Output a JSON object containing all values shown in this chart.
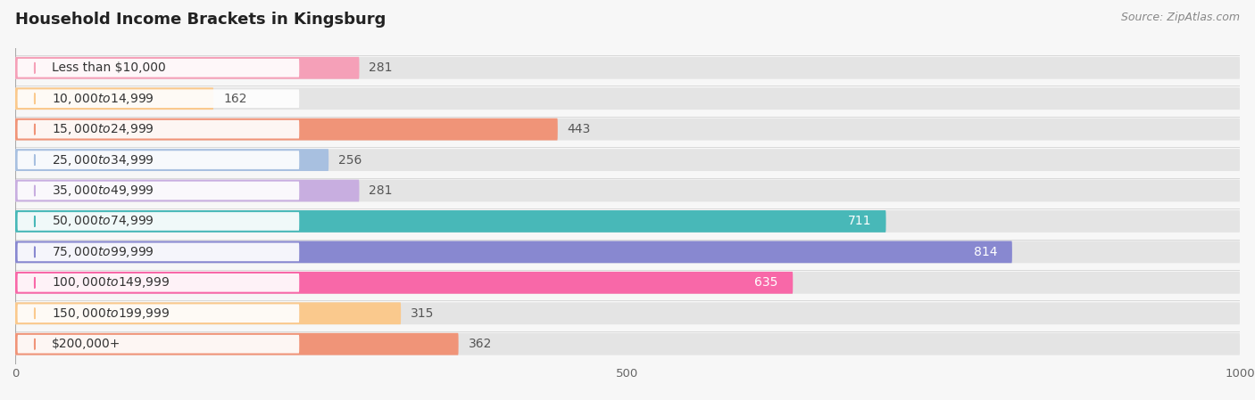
{
  "title": "Household Income Brackets in Kingsburg",
  "source": "Source: ZipAtlas.com",
  "categories": [
    "Less than $10,000",
    "$10,000 to $14,999",
    "$15,000 to $24,999",
    "$25,000 to $34,999",
    "$35,000 to $49,999",
    "$50,000 to $74,999",
    "$75,000 to $99,999",
    "$100,000 to $149,999",
    "$150,000 to $199,999",
    "$200,000+"
  ],
  "values": [
    281,
    162,
    443,
    256,
    281,
    711,
    814,
    635,
    315,
    362
  ],
  "bar_colors": [
    "#f5a0b8",
    "#fac98d",
    "#f09478",
    "#a8c0e0",
    "#c8aee0",
    "#48b8b8",
    "#8888d0",
    "#f868a8",
    "#fac98d",
    "#f09478"
  ],
  "label_colors_on_bar": [
    "#666666",
    "#666666",
    "#666666",
    "#666666",
    "#666666",
    "#ffffff",
    "#ffffff",
    "#ffffff",
    "#666666",
    "#666666"
  ],
  "bg_color": "#f7f7f7",
  "bar_bg_color": "#e4e4e4",
  "xlim": [
    0,
    1000
  ],
  "xticks": [
    0,
    500,
    1000
  ],
  "title_fontsize": 13,
  "label_fontsize": 10,
  "source_fontsize": 9,
  "value_fontsize": 10
}
